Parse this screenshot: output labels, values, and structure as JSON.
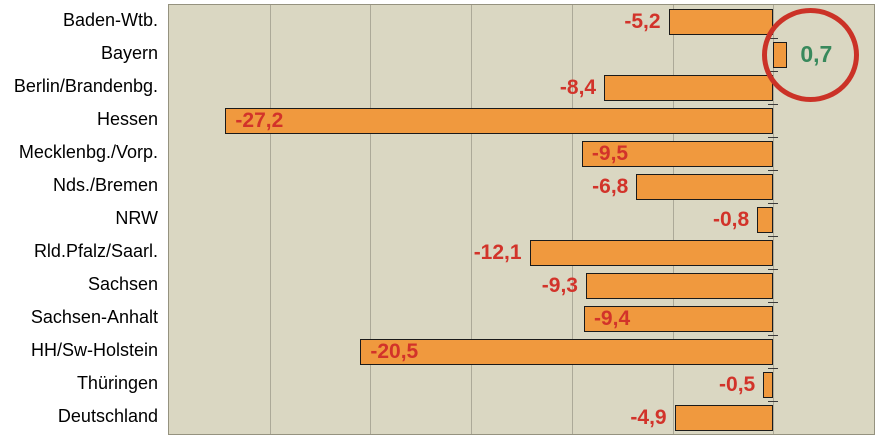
{
  "chart_data": {
    "type": "bar",
    "orientation": "horizontal",
    "title": "",
    "categories": [
      "Baden-Wtb.",
      "Bayern",
      "Berlin/Brandenbg.",
      "Hessen",
      "Mecklenbg./Vorp.",
      "Nds./Bremen",
      "NRW",
      "Rld.Pfalz/Saarl.",
      "Sachsen",
      "Sachsen-Anhalt",
      "HH/Sw-Holstein",
      "Thüringen",
      "Deutschland"
    ],
    "values": [
      -5.2,
      0.7,
      -8.4,
      -27.2,
      -9.5,
      -6.8,
      -0.8,
      -12.1,
      -9.3,
      -9.4,
      -20.5,
      -0.5,
      -4.9
    ],
    "value_labels": [
      "-5,2",
      "0,7",
      "-8,4",
      "-27,2",
      "-9,5",
      "-6,8",
      "-0,8",
      "-12,1",
      "-9,3",
      "-9,4",
      "-20,5",
      "-0,5",
      "-4,9"
    ],
    "value_label_placement": [
      "outside-left",
      "right-of-bar",
      "outside-left",
      "inside-bar",
      "inside-bar",
      "outside-left",
      "outside-left",
      "outside-left",
      "outside-left",
      "inside-bar",
      "inside-bar",
      "outside-left",
      "outside-left"
    ],
    "xlim": [
      -30,
      5
    ],
    "gridline_values": [
      -30,
      -25,
      -20,
      -15,
      -10,
      -5,
      0,
      5
    ],
    "grid": "vertical",
    "legend": false,
    "annotations": [
      {
        "shape": "circle",
        "target_category": "Bayern",
        "target_value_label": "0,7",
        "color": "#cb3227"
      }
    ]
  },
  "colors": {
    "page_background": "#ffffff",
    "plot_background": "#dad7c2",
    "plot_border": "#95927f",
    "gridline": "#aca998",
    "bar_fill": "#f0993e",
    "bar_border": "#1a1a1a",
    "category_text": "#000000",
    "value_negative": "#d2332a",
    "value_positive": "#38895c",
    "axis_tick": "#3a3a3a",
    "annotation_circle": "#cb3227"
  }
}
